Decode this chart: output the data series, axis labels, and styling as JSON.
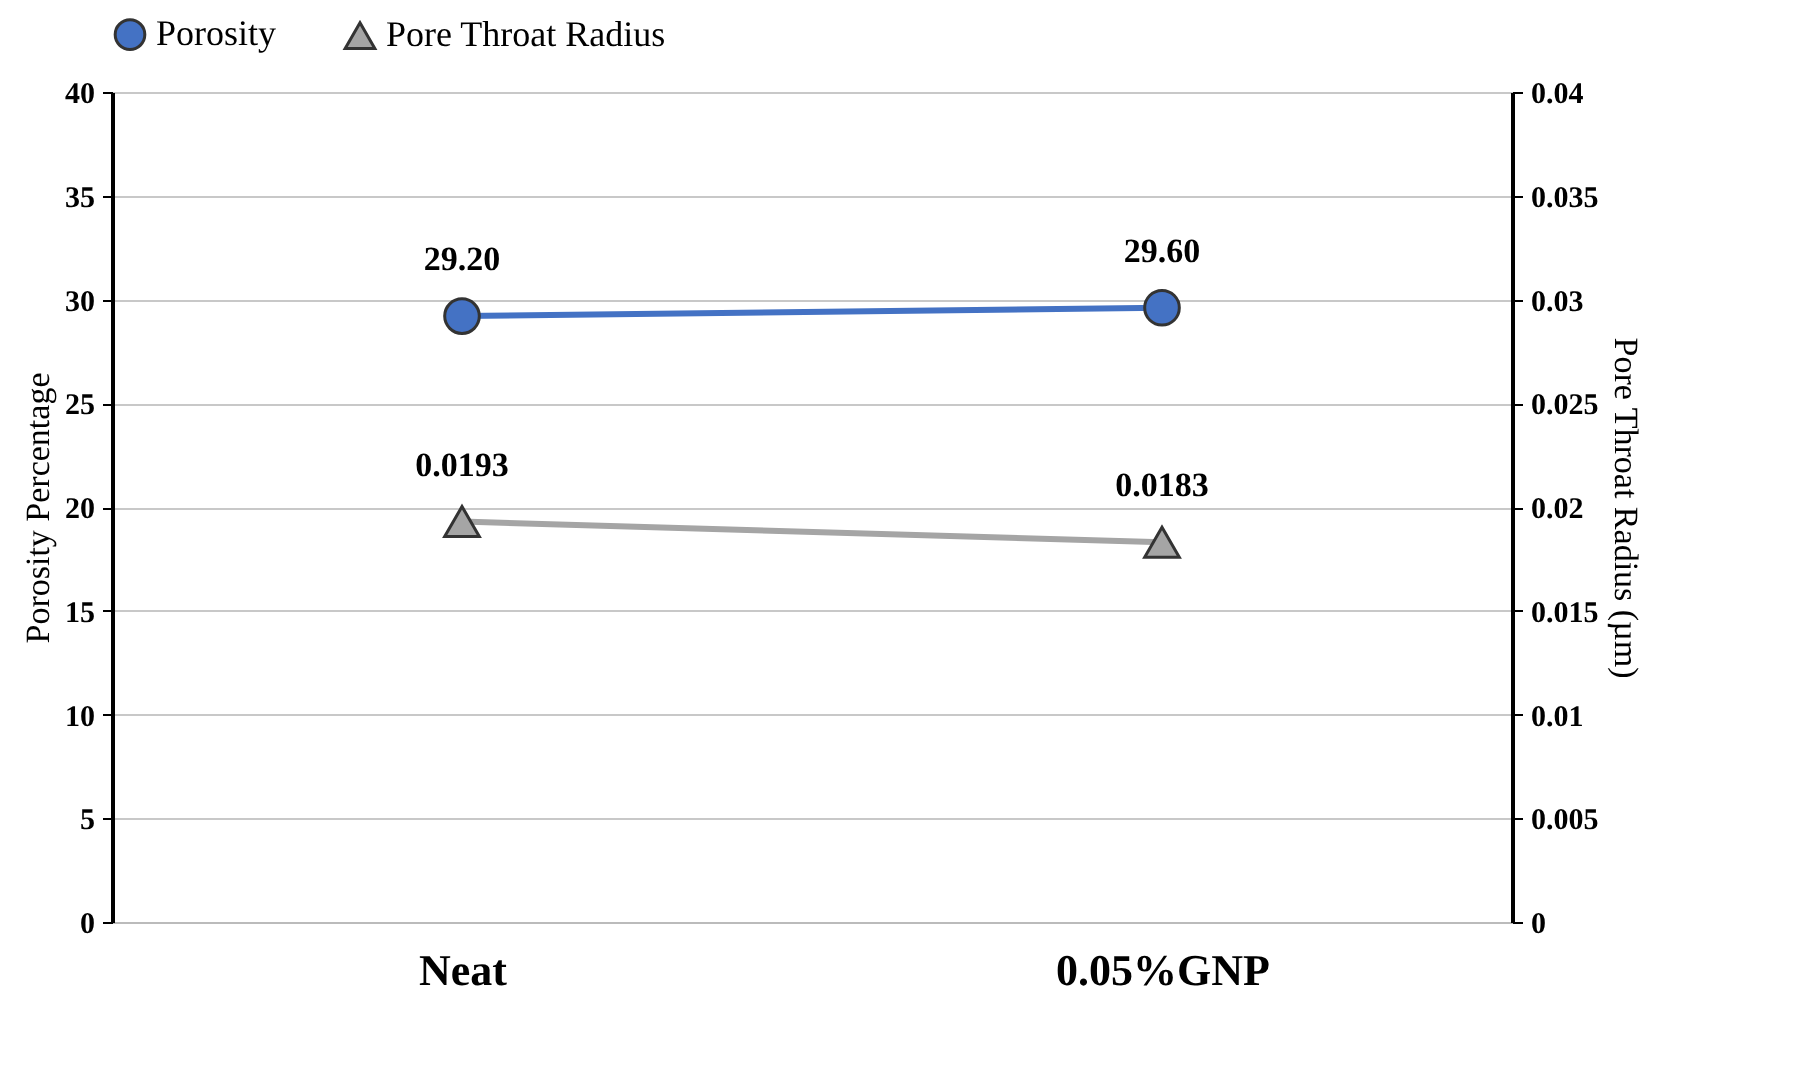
{
  "chart_data": {
    "type": "line",
    "categories": [
      "Neat",
      "0.05%GNP"
    ],
    "series": [
      {
        "name": "Porosity",
        "color": "#4472c4",
        "values": [
          29.2,
          29.6
        ],
        "value_labels": [
          "29.20",
          "29.60"
        ],
        "marker": "circle"
      },
      {
        "name": "Pore Throat Radius",
        "color": "#a5a5a5",
        "values": [
          0.0193,
          0.0183
        ],
        "value_labels": [
          "0.0193",
          "0.0183"
        ],
        "marker": "triangle",
        "axis": "y2"
      }
    ],
    "ylabel": "Porosity Percentage",
    "y2label": "Pore Throat Radius (µm)",
    "ylim": [
      0,
      40
    ],
    "yticks": [
      0,
      5,
      10,
      15,
      20,
      25,
      30,
      35,
      40
    ],
    "y2lim": [
      0,
      0.04
    ],
    "y2ticks": [
      0,
      0.005,
      0.01,
      0.015,
      0.02,
      0.025,
      0.03,
      0.035,
      0.04
    ],
    "grid": "y",
    "legend": "top",
    "line_style": "solid"
  }
}
